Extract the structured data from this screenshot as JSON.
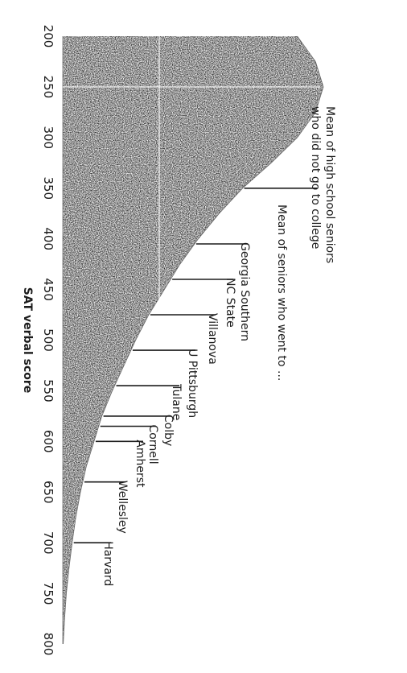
{
  "chart_data": {
    "type": "area",
    "xlabel": "SAT verbal score",
    "x_ticks": [
      200,
      250,
      300,
      350,
      400,
      450,
      500,
      550,
      600,
      650,
      700,
      750,
      800
    ],
    "x_tick_labels": [
      "200",
      "250",
      "300",
      "350",
      "400",
      "450",
      "500",
      "550",
      "600",
      "650",
      "700",
      "750",
      "800"
    ],
    "xlim": [
      200,
      800
    ],
    "distribution_curve": {
      "x": [
        200,
        225,
        250,
        275,
        300,
        325,
        350,
        375,
        400,
        425,
        450,
        475,
        500,
        525,
        550,
        575,
        600,
        625,
        650,
        675,
        700,
        725,
        750,
        775,
        800
      ],
      "y": [
        0.9,
        0.97,
        1.0,
        0.97,
        0.9,
        0.8,
        0.69,
        0.6,
        0.52,
        0.45,
        0.39,
        0.33,
        0.28,
        0.235,
        0.19,
        0.15,
        0.12,
        0.09,
        0.068,
        0.05,
        0.036,
        0.024,
        0.014,
        0.007,
        0.002
      ]
    },
    "group_annotation": "Mean of seniors who went to ...",
    "markers": [
      {
        "label": "Mean of high school seniors\nwho did not go to college",
        "x": 350
      },
      {
        "label": "Georgia Southern",
        "x": 405
      },
      {
        "label": "NC State",
        "x": 440
      },
      {
        "label": "Villanova",
        "x": 475
      },
      {
        "label": "U Pittsburgh",
        "x": 510
      },
      {
        "label": "Tulane",
        "x": 545
      },
      {
        "label": "Colby",
        "x": 575
      },
      {
        "label": "Cornell",
        "x": 585
      },
      {
        "label": "Amherst",
        "x": 600
      },
      {
        "label": "Wellesley",
        "x": 640
      },
      {
        "label": "Harvard",
        "x": 700
      }
    ],
    "grid": false
  }
}
